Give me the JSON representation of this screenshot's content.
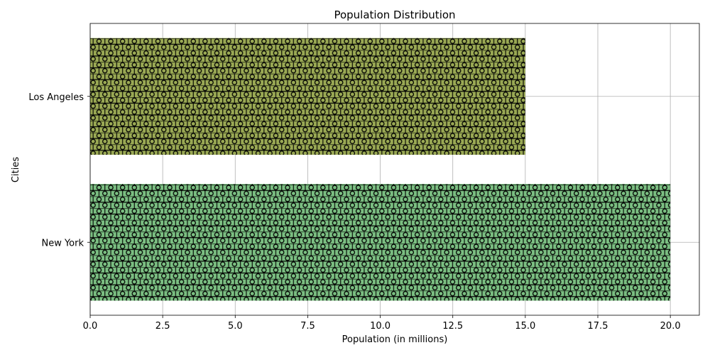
{
  "chart_data": {
    "type": "bar",
    "orientation": "horizontal",
    "title": "Population Distribution",
    "xlabel": "Population (in millions)",
    "ylabel": "Cities",
    "categories": [
      "Los Angeles",
      "New York"
    ],
    "values": [
      15,
      20
    ],
    "xlim": [
      0,
      21
    ],
    "xticks": [
      0,
      2.5,
      5,
      7.5,
      10,
      12.5,
      15,
      17.5,
      20
    ],
    "xtick_labels": [
      "0.0",
      "2.5",
      "5.0",
      "7.5",
      "10.0",
      "12.5",
      "15.0",
      "17.5",
      "20.0"
    ],
    "grid": true,
    "bar_colors": [
      "#9aa954",
      "#7bbf82"
    ],
    "bar_pattern": "ring-hatch"
  }
}
